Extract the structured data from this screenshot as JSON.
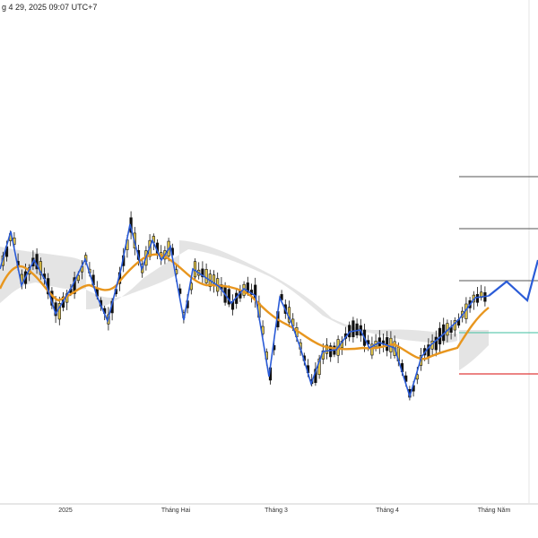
{
  "header": {
    "timestamp": "g 4 29, 2025 09:07 UTC+7"
  },
  "x_axis": {
    "ticks": [
      "2025",
      "Tháng Hai",
      "Tháng 3",
      "Tháng 4",
      "Tháng Năm"
    ]
  },
  "colors": {
    "candle_up": "#e6c84a",
    "candle_down": "#111111",
    "zigzag": "#2a5bd7",
    "ma": "#e8961e",
    "cloud": "#d9d9d9",
    "level_green": "#3fbf9f",
    "level_red": "#e03a3a",
    "level_gray": "#555555"
  }
}
